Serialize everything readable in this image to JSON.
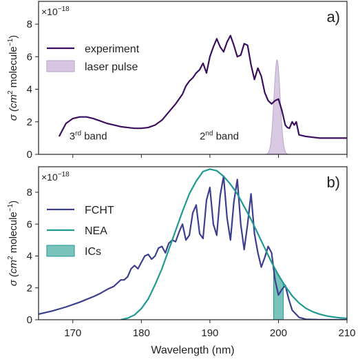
{
  "chart_data": [
    {
      "panel": "a)",
      "type": "line",
      "multiplier": "×10",
      "multiplier_exp": "−18",
      "ylabel_main": "σ (cm",
      "ylabel_sup1": "2",
      "ylabel_mid": " molecule",
      "ylabel_sup2": "−1",
      "ylabel_end": ")",
      "xlim": [
        165,
        210
      ],
      "ylim": [
        0,
        9.4
      ],
      "yticks": [
        0,
        2,
        4,
        6,
        8
      ],
      "legend_position": "upper-left",
      "series": [
        {
          "name": "experiment",
          "color": "#3b0f5e",
          "x": [
            168,
            169,
            170,
            171,
            172,
            173,
            174,
            175,
            176,
            177,
            178,
            179,
            180,
            181,
            182,
            183,
            184,
            185,
            185.5,
            186,
            186.5,
            187,
            187.5,
            188,
            188.5,
            189,
            189.5,
            190,
            190.5,
            191,
            191.5,
            192,
            192.5,
            193,
            193.5,
            194,
            194.5,
            195,
            195.5,
            196,
            196.5,
            197,
            197.5,
            198,
            198.5,
            199,
            199.5,
            200,
            200.5,
            201,
            201.3,
            201.6,
            202,
            202.3,
            202.6,
            203,
            204,
            205,
            206,
            207,
            208,
            209,
            210
          ],
          "y": [
            1.1,
            1.9,
            2.2,
            2.3,
            2.3,
            2.2,
            2.05,
            1.9,
            1.8,
            1.7,
            1.65,
            1.6,
            1.6,
            1.65,
            1.8,
            2.1,
            2.6,
            3.1,
            3.4,
            3.7,
            4.2,
            4.5,
            4.7,
            5.0,
            5.2,
            5.6,
            5.0,
            6.0,
            6.6,
            7.1,
            6.6,
            6.3,
            6.9,
            7.3,
            6.7,
            6.0,
            6.1,
            6.8,
            6.7,
            5.5,
            4.6,
            5.3,
            4.8,
            3.8,
            3.3,
            3.1,
            3.3,
            3.4,
            2.7,
            1.8,
            1.65,
            1.6,
            2.0,
            1.8,
            2.0,
            1.2,
            1.1,
            1.05,
            1.0,
            1.0,
            1.0,
            1.0,
            1.0
          ]
        },
        {
          "name": "laser pulse",
          "color": "#c9b3d6",
          "type": "area",
          "center": 199.8,
          "sigma": 0.45,
          "peak": 5.8
        }
      ],
      "annotations": [
        {
          "text_main": "3",
          "text_sup": "rd",
          "text_end": " band",
          "x": 169.5,
          "y": 0.9
        },
        {
          "text_main": "2",
          "text_sup": "nd",
          "text_end": " band",
          "x": 188.5,
          "y": 0.9
        }
      ]
    },
    {
      "panel": "b)",
      "type": "line",
      "multiplier": "×10",
      "multiplier_exp": "−18",
      "ylabel_main": "σ (cm",
      "ylabel_sup1": "2",
      "ylabel_mid": " molecule",
      "ylabel_sup2": "−1",
      "ylabel_end": ")",
      "xlabel": "Wavelength (nm)",
      "xlim": [
        165,
        210
      ],
      "xticks": [
        170,
        180,
        190,
        200,
        210
      ],
      "ylim": [
        0,
        9.6
      ],
      "yticks": [
        0,
        2,
        4,
        6,
        8
      ],
      "legend_position": "center-left",
      "series": [
        {
          "name": "FCHT",
          "color": "#3b3f8c",
          "x": [
            165,
            167,
            169,
            171,
            173,
            174,
            175,
            176,
            177,
            177.5,
            178,
            178.5,
            179,
            179.5,
            180,
            180.5,
            181,
            181.5,
            182,
            182.5,
            183,
            183.5,
            184,
            184.5,
            185,
            185.5,
            186,
            186.5,
            187,
            187.5,
            188,
            188.5,
            189,
            189.5,
            190,
            190.5,
            191,
            191.5,
            192,
            192.5,
            193,
            193.5,
            194,
            194.5,
            195,
            195.5,
            196,
            196.5,
            197,
            197.5,
            198,
            198.5,
            199,
            199.5,
            200,
            200.5,
            201,
            201.5,
            202,
            203,
            204,
            206,
            208,
            210
          ],
          "y": [
            0.35,
            0.55,
            0.8,
            1.1,
            1.45,
            1.65,
            1.9,
            2.1,
            2.5,
            2.5,
            2.7,
            3.2,
            3.4,
            3.2,
            3.6,
            4.0,
            4.1,
            3.8,
            4.0,
            4.5,
            4.6,
            4.2,
            4.8,
            5.0,
            4.9,
            5.5,
            6.0,
            5.0,
            5.3,
            6.7,
            7.2,
            5.4,
            5.1,
            7.5,
            8.3,
            6.0,
            5.3,
            7.8,
            9.0,
            6.4,
            5.0,
            7.4,
            8.8,
            6.0,
            4.4,
            6.0,
            7.9,
            5.4,
            4.2,
            3.3,
            3.9,
            4.6,
            4.2,
            2.5,
            1.55,
            1.9,
            2.15,
            1.3,
            0.6,
            0.15,
            0.03,
            0.0,
            0.0,
            0.0
          ]
        },
        {
          "name": "NEA",
          "color": "#1f9a91",
          "x": [
            177,
            178,
            179,
            180,
            181,
            182,
            183,
            184,
            185,
            186,
            187,
            188,
            189,
            190,
            191,
            192,
            193,
            194,
            195,
            196,
            197,
            198,
            199,
            200,
            201,
            202,
            203,
            204,
            205,
            206,
            207,
            208,
            209,
            210
          ],
          "y": [
            0.0,
            0.1,
            0.3,
            0.7,
            1.3,
            2.2,
            3.2,
            4.4,
            5.6,
            6.8,
            7.9,
            8.7,
            9.3,
            9.45,
            9.35,
            9.0,
            8.5,
            7.9,
            7.1,
            6.3,
            5.4,
            4.5,
            3.6,
            2.8,
            2.1,
            1.5,
            1.05,
            0.72,
            0.5,
            0.35,
            0.24,
            0.17,
            0.12,
            0.09
          ]
        },
        {
          "name": "ICs",
          "color": "#4fb3aa",
          "type": "band",
          "x_range": [
            199.3,
            200.7
          ]
        }
      ]
    }
  ]
}
